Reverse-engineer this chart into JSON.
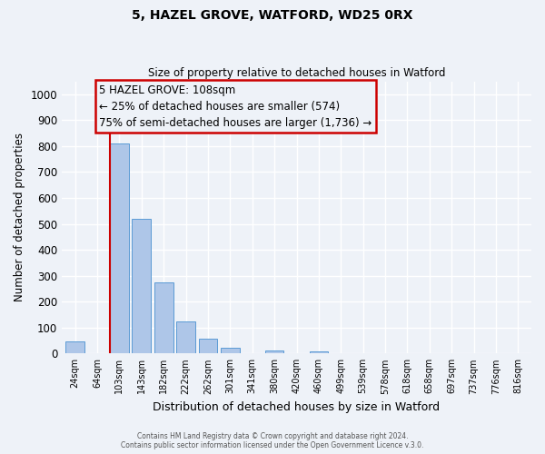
{
  "title": "5, HAZEL GROVE, WATFORD, WD25 0RX",
  "subtitle": "Size of property relative to detached houses in Watford",
  "xlabel": "Distribution of detached houses by size in Watford",
  "ylabel": "Number of detached properties",
  "bar_labels": [
    "24sqm",
    "64sqm",
    "103sqm",
    "143sqm",
    "182sqm",
    "222sqm",
    "262sqm",
    "301sqm",
    "341sqm",
    "380sqm",
    "420sqm",
    "460sqm",
    "499sqm",
    "539sqm",
    "578sqm",
    "618sqm",
    "658sqm",
    "697sqm",
    "737sqm",
    "776sqm",
    "816sqm"
  ],
  "bar_values": [
    46,
    0,
    810,
    520,
    275,
    125,
    57,
    22,
    0,
    12,
    0,
    8,
    0,
    0,
    0,
    0,
    0,
    0,
    0,
    0,
    0
  ],
  "bar_color": "#aec6e8",
  "bar_edge_color": "#5b9bd5",
  "ylim": [
    0,
    1050
  ],
  "yticks": [
    0,
    100,
    200,
    300,
    400,
    500,
    600,
    700,
    800,
    900,
    1000
  ],
  "vline_index": 2,
  "vline_color": "#cc0000",
  "annotation_box_color": "#cc0000",
  "annotation_line1": "5 HAZEL GROVE: 108sqm",
  "annotation_line2": "← 25% of detached houses are smaller (574)",
  "annotation_line3": "75% of semi-detached houses are larger (1,736) →",
  "footer1": "Contains HM Land Registry data © Crown copyright and database right 2024.",
  "footer2": "Contains public sector information licensed under the Open Government Licence v.3.0.",
  "bg_color": "#eef2f8",
  "grid_color": "#ffffff"
}
